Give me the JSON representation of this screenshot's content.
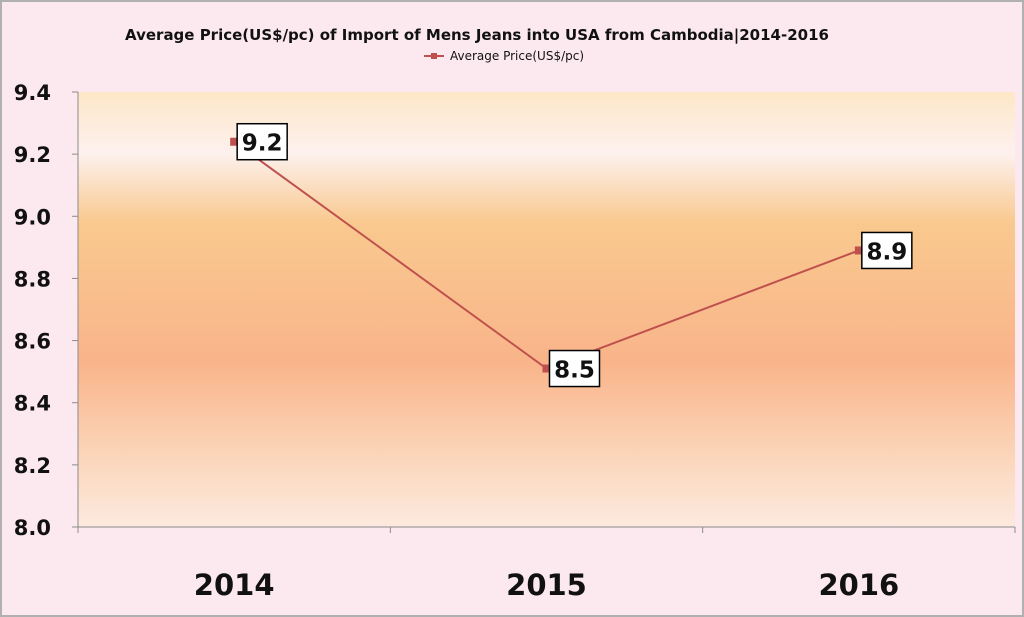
{
  "chart_data": {
    "type": "line",
    "title": "Average Price(US$/pc) of Import of Mens Jeans into USA from Cambodia|2014-2016",
    "categories": [
      "2014",
      "2015",
      "2016"
    ],
    "series": [
      {
        "name": "Average Price(US$/pc)",
        "values": [
          9.24,
          8.51,
          8.89
        ],
        "data_labels": [
          "9.2",
          "8.5",
          "8.9"
        ]
      }
    ],
    "yticks": [
      "8.0",
      "8.2",
      "8.4",
      "8.6",
      "8.8",
      "9.0",
      "9.2",
      "9.4"
    ],
    "ylim": [
      8.0,
      9.4
    ],
    "grid": false,
    "legend_position": "top",
    "colors": {
      "series": "#c0504d",
      "plot_band_light": "#fde9df",
      "plot_band_dark": "#f9b48a"
    }
  }
}
